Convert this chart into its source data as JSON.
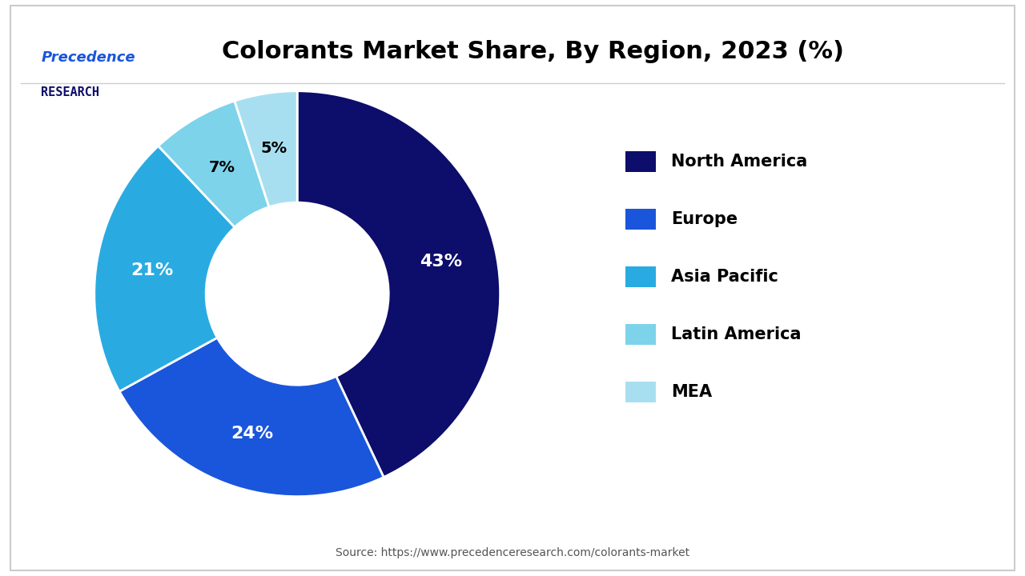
{
  "title": "Colorants Market Share, By Region, 2023 (%)",
  "slices": [
    43,
    24,
    21,
    7,
    5
  ],
  "labels": [
    "North America",
    "Europe",
    "Asia Pacific",
    "Latin America",
    "MEA"
  ],
  "colors": [
    "#0d0d6b",
    "#1a56db",
    "#29abe2",
    "#7dd3ea",
    "#a8dff0"
  ],
  "pct_labels": [
    "43%",
    "24%",
    "21%",
    "7%",
    "5%"
  ],
  "pct_colors": [
    "white",
    "white",
    "white",
    "black",
    "black"
  ],
  "source_text": "Source: https://www.precedenceresearch.com/colorants-market",
  "logo_text_top": "Precedence",
  "logo_text_bottom": "RESEARCH",
  "background_color": "#ffffff",
  "title_fontsize": 22,
  "legend_fontsize": 15
}
